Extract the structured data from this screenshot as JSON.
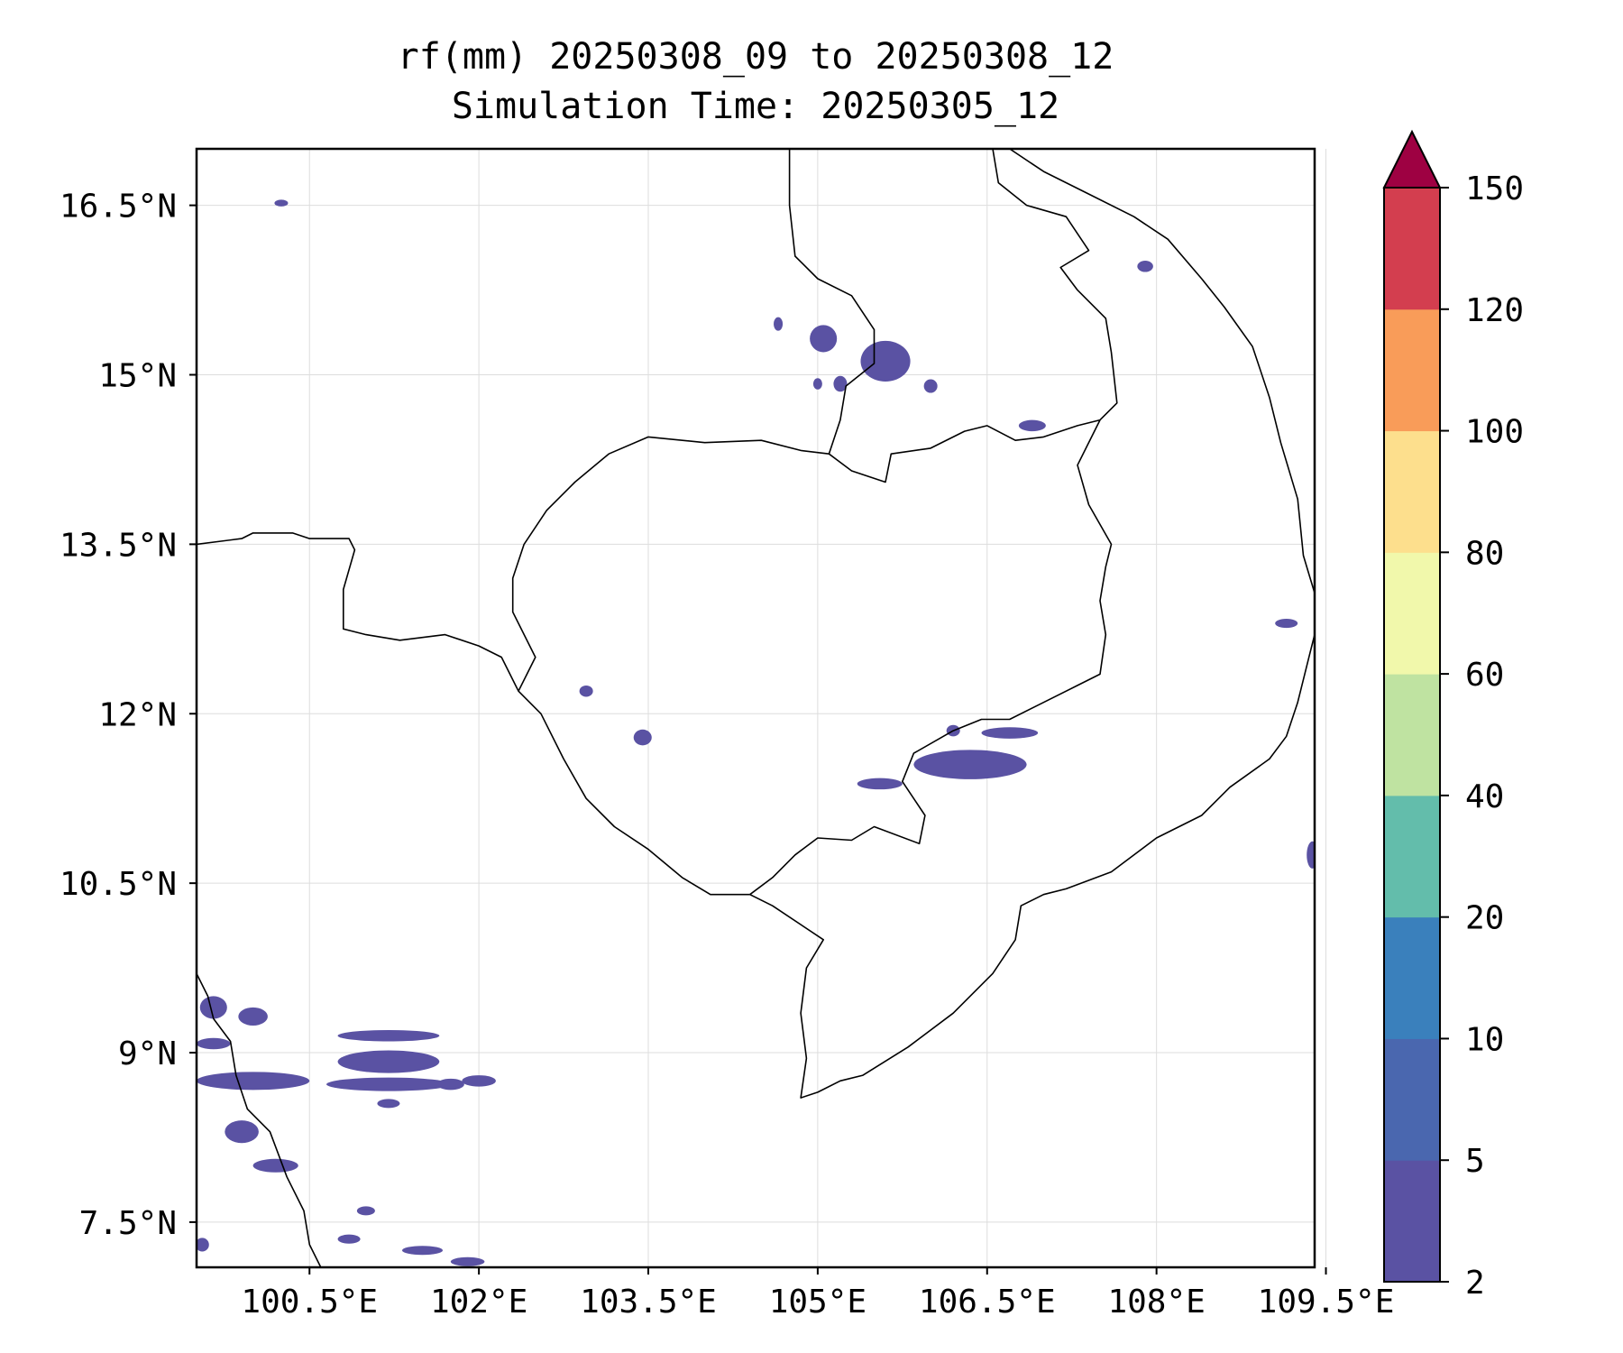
{
  "title": {
    "line1": "rf(mm) 20250308_09 to 20250308_12",
    "line2": "Simulation Time: 20250305_12"
  },
  "map": {
    "lon_range": [
      99.5,
      109.4
    ],
    "lat_range": [
      7.1,
      17.0
    ],
    "lon_ticks": [
      {
        "value": 100.5,
        "label": "100.5°E"
      },
      {
        "value": 102.0,
        "label": "102°E"
      },
      {
        "value": 103.5,
        "label": "103.5°E"
      },
      {
        "value": 105.0,
        "label": "105°E"
      },
      {
        "value": 106.5,
        "label": "106.5°E"
      },
      {
        "value": 108.0,
        "label": "108°E"
      },
      {
        "value": 109.5,
        "label": "109.5°E"
      }
    ],
    "lat_ticks": [
      {
        "value": 16.5,
        "label": "16.5°N"
      },
      {
        "value": 15.0,
        "label": "15°N"
      },
      {
        "value": 13.5,
        "label": "13.5°N"
      },
      {
        "value": 12.0,
        "label": "12°N"
      },
      {
        "value": 10.5,
        "label": "10.5°N"
      },
      {
        "value": 9.0,
        "label": "9°N"
      },
      {
        "value": 7.5,
        "label": "7.5°N"
      }
    ],
    "grid": true,
    "rain_color": "#5a52a3",
    "rain_areas": [
      {
        "lon": 100.25,
        "lat": 16.52,
        "rlon": 0.06,
        "rlat": 0.03
      },
      {
        "lon": 104.65,
        "lat": 15.45,
        "rlon": 0.04,
        "rlat": 0.06
      },
      {
        "lon": 105.05,
        "lat": 15.32,
        "rlon": 0.12,
        "rlat": 0.12
      },
      {
        "lon": 105.6,
        "lat": 15.12,
        "rlon": 0.22,
        "rlat": 0.18
      },
      {
        "lon": 105.0,
        "lat": 14.92,
        "rlon": 0.04,
        "rlat": 0.05
      },
      {
        "lon": 105.2,
        "lat": 14.92,
        "rlon": 0.06,
        "rlat": 0.07
      },
      {
        "lon": 106.0,
        "lat": 14.9,
        "rlon": 0.06,
        "rlat": 0.06
      },
      {
        "lon": 106.9,
        "lat": 14.55,
        "rlon": 0.12,
        "rlat": 0.05
      },
      {
        "lon": 107.9,
        "lat": 15.96,
        "rlon": 0.07,
        "rlat": 0.05
      },
      {
        "lon": 103.45,
        "lat": 11.79,
        "rlon": 0.08,
        "rlat": 0.07
      },
      {
        "lon": 102.95,
        "lat": 12.2,
        "rlon": 0.06,
        "rlat": 0.05
      },
      {
        "lon": 106.35,
        "lat": 11.55,
        "rlon": 0.5,
        "rlat": 0.13
      },
      {
        "lon": 105.55,
        "lat": 11.38,
        "rlon": 0.2,
        "rlat": 0.05
      },
      {
        "lon": 106.7,
        "lat": 11.83,
        "rlon": 0.25,
        "rlat": 0.05
      },
      {
        "lon": 106.2,
        "lat": 11.85,
        "rlon": 0.06,
        "rlat": 0.05
      },
      {
        "lon": 109.15,
        "lat": 12.8,
        "rlon": 0.1,
        "rlat": 0.04
      },
      {
        "lon": 109.38,
        "lat": 10.75,
        "rlon": 0.05,
        "rlat": 0.12
      },
      {
        "lon": 99.65,
        "lat": 9.4,
        "rlon": 0.12,
        "rlat": 0.1
      },
      {
        "lon": 100.0,
        "lat": 9.32,
        "rlon": 0.13,
        "rlat": 0.08
      },
      {
        "lon": 99.65,
        "lat": 9.08,
        "rlon": 0.15,
        "rlat": 0.05
      },
      {
        "lon": 101.2,
        "lat": 9.15,
        "rlon": 0.45,
        "rlat": 0.05
      },
      {
        "lon": 101.2,
        "lat": 8.92,
        "rlon": 0.45,
        "rlat": 0.1
      },
      {
        "lon": 100.0,
        "lat": 8.75,
        "rlon": 0.5,
        "rlat": 0.08
      },
      {
        "lon": 101.2,
        "lat": 8.72,
        "rlon": 0.55,
        "rlat": 0.06
      },
      {
        "lon": 102.0,
        "lat": 8.75,
        "rlon": 0.15,
        "rlat": 0.05
      },
      {
        "lon": 101.75,
        "lat": 8.72,
        "rlon": 0.12,
        "rlat": 0.05
      },
      {
        "lon": 101.2,
        "lat": 8.55,
        "rlon": 0.1,
        "rlat": 0.04
      },
      {
        "lon": 99.9,
        "lat": 8.3,
        "rlon": 0.15,
        "rlat": 0.1
      },
      {
        "lon": 100.2,
        "lat": 8.0,
        "rlon": 0.2,
        "rlat": 0.06
      },
      {
        "lon": 101.0,
        "lat": 7.6,
        "rlon": 0.08,
        "rlat": 0.04
      },
      {
        "lon": 100.85,
        "lat": 7.35,
        "rlon": 0.1,
        "rlat": 0.04
      },
      {
        "lon": 101.5,
        "lat": 7.25,
        "rlon": 0.18,
        "rlat": 0.04
      },
      {
        "lon": 101.9,
        "lat": 7.15,
        "rlon": 0.15,
        "rlat": 0.04
      },
      {
        "lon": 99.55,
        "lat": 7.3,
        "rlon": 0.06,
        "rlat": 0.06
      }
    ],
    "borders": [
      [
        [
          99.5,
          13.5
        ],
        [
          99.9,
          13.55
        ],
        [
          100.0,
          13.6
        ],
        [
          100.35,
          13.6
        ],
        [
          100.5,
          13.55
        ],
        [
          100.85,
          13.55
        ],
        [
          100.9,
          13.45
        ],
        [
          100.8,
          13.1
        ],
        [
          100.8,
          12.75
        ],
        [
          101.0,
          12.7
        ],
        [
          101.3,
          12.65
        ],
        [
          101.7,
          12.7
        ],
        [
          102.0,
          12.6
        ],
        [
          102.2,
          12.5
        ],
        [
          102.35,
          12.2
        ],
        [
          102.55,
          12.0
        ],
        [
          102.75,
          11.6
        ],
        [
          102.95,
          11.25
        ],
        [
          103.2,
          11.0
        ],
        [
          103.5,
          10.8
        ],
        [
          103.8,
          10.55
        ],
        [
          104.05,
          10.4
        ],
        [
          104.4,
          10.4
        ]
      ],
      [
        [
          102.35,
          12.2
        ],
        [
          102.5,
          12.5
        ],
        [
          102.3,
          12.9
        ],
        [
          102.3,
          13.2
        ],
        [
          102.4,
          13.5
        ],
        [
          102.6,
          13.8
        ],
        [
          102.85,
          14.05
        ],
        [
          103.15,
          14.3
        ],
        [
          103.5,
          14.45
        ],
        [
          104.0,
          14.4
        ],
        [
          104.5,
          14.42
        ],
        [
          104.85,
          14.33
        ],
        [
          105.1,
          14.3
        ],
        [
          105.3,
          14.15
        ],
        [
          105.6,
          14.05
        ],
        [
          105.65,
          14.3
        ],
        [
          106.0,
          14.35
        ],
        [
          106.3,
          14.5
        ],
        [
          106.5,
          14.55
        ],
        [
          106.75,
          14.42
        ],
        [
          107.0,
          14.45
        ],
        [
          107.3,
          14.55
        ],
        [
          107.5,
          14.6
        ]
      ],
      [
        [
          104.4,
          10.4
        ],
        [
          104.6,
          10.55
        ],
        [
          104.8,
          10.75
        ],
        [
          105.0,
          10.9
        ],
        [
          105.3,
          10.88
        ],
        [
          105.5,
          11.0
        ],
        [
          105.9,
          10.85
        ],
        [
          105.95,
          11.1
        ],
        [
          105.75,
          11.4
        ],
        [
          105.85,
          11.65
        ],
        [
          106.2,
          11.85
        ],
        [
          106.45,
          11.95
        ],
        [
          106.7,
          11.95
        ],
        [
          107.0,
          12.1
        ],
        [
          107.3,
          12.25
        ],
        [
          107.5,
          12.35
        ],
        [
          107.55,
          12.7
        ],
        [
          107.5,
          13.0
        ],
        [
          107.55,
          13.3
        ],
        [
          107.6,
          13.5
        ],
        [
          107.4,
          13.85
        ],
        [
          107.3,
          14.2
        ],
        [
          107.5,
          14.6
        ]
      ],
      [
        [
          105.1,
          14.3
        ],
        [
          105.2,
          14.6
        ],
        [
          105.25,
          14.9
        ],
        [
          105.5,
          15.1
        ],
        [
          105.5,
          15.4
        ],
        [
          105.3,
          15.7
        ],
        [
          105.0,
          15.85
        ],
        [
          104.8,
          16.05
        ],
        [
          104.75,
          16.5
        ],
        [
          104.75,
          17.0
        ]
      ],
      [
        [
          107.5,
          14.6
        ],
        [
          107.65,
          14.75
        ],
        [
          107.6,
          15.2
        ],
        [
          107.55,
          15.5
        ],
        [
          107.3,
          15.75
        ],
        [
          107.15,
          15.95
        ],
        [
          107.4,
          16.1
        ],
        [
          107.2,
          16.4
        ],
        [
          106.85,
          16.5
        ],
        [
          106.6,
          16.7
        ],
        [
          106.55,
          17.0
        ]
      ]
    ],
    "coastlines": [
      [
        [
          106.7,
          17.0
        ],
        [
          107.0,
          16.8
        ],
        [
          107.4,
          16.6
        ],
        [
          107.8,
          16.4
        ],
        [
          108.1,
          16.2
        ],
        [
          108.4,
          15.85
        ],
        [
          108.6,
          15.6
        ],
        [
          108.85,
          15.25
        ],
        [
          109.0,
          14.8
        ],
        [
          109.1,
          14.4
        ],
        [
          109.25,
          13.9
        ],
        [
          109.3,
          13.4
        ],
        [
          109.45,
          12.9
        ],
        [
          109.35,
          12.5
        ],
        [
          109.25,
          12.1
        ],
        [
          109.15,
          11.8
        ],
        [
          109.0,
          11.6
        ],
        [
          108.65,
          11.35
        ],
        [
          108.4,
          11.1
        ],
        [
          108.0,
          10.9
        ],
        [
          107.6,
          10.6
        ],
        [
          107.2,
          10.45
        ],
        [
          107.0,
          10.4
        ],
        [
          106.8,
          10.3
        ],
        [
          106.75,
          10.0
        ],
        [
          106.55,
          9.7
        ],
        [
          106.2,
          9.35
        ],
        [
          105.8,
          9.05
        ],
        [
          105.4,
          8.8
        ],
        [
          105.2,
          8.75
        ],
        [
          105.0,
          8.65
        ],
        [
          104.85,
          8.6
        ],
        [
          104.9,
          8.95
        ],
        [
          104.85,
          9.35
        ],
        [
          104.9,
          9.75
        ],
        [
          105.05,
          10.0
        ],
        [
          104.6,
          10.3
        ],
        [
          104.4,
          10.4
        ]
      ],
      [
        [
          99.5,
          9.7
        ],
        [
          99.6,
          9.5
        ],
        [
          99.65,
          9.3
        ],
        [
          99.8,
          9.1
        ],
        [
          99.85,
          8.8
        ],
        [
          99.95,
          8.5
        ],
        [
          100.15,
          8.3
        ],
        [
          100.3,
          7.9
        ],
        [
          100.45,
          7.6
        ],
        [
          100.5,
          7.3
        ],
        [
          100.6,
          7.1
        ]
      ]
    ]
  },
  "colorbar": {
    "levels": [
      2,
      5,
      10,
      20,
      40,
      60,
      80,
      100,
      120,
      150
    ],
    "colors": [
      "#5a52a3",
      "#4a67af",
      "#3a80bc",
      "#63bdab",
      "#bfe3a1",
      "#f1f8ab",
      "#fddf8d",
      "#f99c59",
      "#d33e4f"
    ],
    "extend_color": "#9e0142",
    "labels": [
      "2",
      "5",
      "10",
      "20",
      "40",
      "60",
      "80",
      "100",
      "120",
      "150"
    ]
  }
}
